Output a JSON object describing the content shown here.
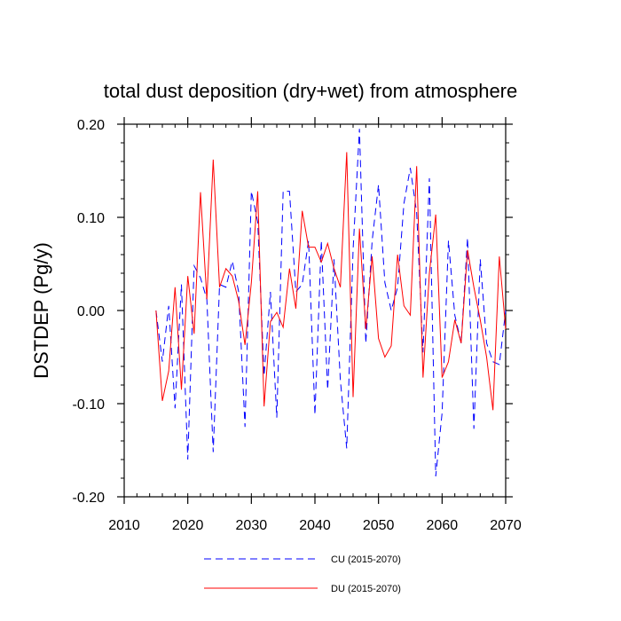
{
  "chart_data": {
    "type": "line",
    "title": "total dust deposition (dry+wet) from atmosphere",
    "xlabel": "",
    "ylabel": "DSTDEP  (Pg/y)",
    "xlim": [
      2010,
      2070
    ],
    "ylim": [
      -0.2,
      0.2
    ],
    "xticks": [
      2010,
      2020,
      2030,
      2040,
      2050,
      2060,
      2070
    ],
    "xtick_labels": [
      "2010",
      "2020",
      "2030",
      "2040",
      "2050",
      "2060",
      "2070"
    ],
    "yticks": [
      -0.2,
      -0.1,
      0.0,
      0.1,
      0.2
    ],
    "ytick_labels": [
      "-0.20",
      "-0.10",
      "0.00",
      "0.10",
      "0.20"
    ],
    "legend_position": "bottom-center",
    "series": [
      {
        "name": "CU (2015-2070)",
        "color": "#0000ff",
        "style": "dashed",
        "x": [
          2015,
          2016,
          2017,
          2018,
          2019,
          2020,
          2021,
          2022,
          2023,
          2024,
          2025,
          2026,
          2027,
          2028,
          2029,
          2030,
          2031,
          2032,
          2033,
          2034,
          2035,
          2036,
          2037,
          2038,
          2039,
          2040,
          2041,
          2042,
          2043,
          2044,
          2045,
          2046,
          2047,
          2048,
          2049,
          2050,
          2051,
          2052,
          2053,
          2054,
          2055,
          2056,
          2057,
          2058,
          2059,
          2060,
          2061,
          2062,
          2063,
          2064,
          2065,
          2066,
          2067,
          2068,
          2069,
          2070
        ],
        "values": [
          0.0,
          -0.055,
          0.005,
          -0.105,
          0.028,
          -0.16,
          0.048,
          0.035,
          0.012,
          -0.152,
          0.028,
          0.025,
          0.053,
          0.02,
          -0.125,
          0.128,
          0.095,
          -0.07,
          0.02,
          -0.115,
          0.128,
          0.128,
          0.02,
          0.028,
          0.075,
          -0.112,
          0.075,
          -0.085,
          0.055,
          -0.075,
          -0.148,
          0.065,
          0.195,
          -0.035,
          0.075,
          0.135,
          0.03,
          0.0,
          0.025,
          0.115,
          0.153,
          0.105,
          -0.045,
          0.142,
          -0.178,
          -0.11,
          0.075,
          -0.005,
          -0.035,
          0.078,
          -0.127,
          0.055,
          -0.035,
          -0.055,
          -0.058,
          0.0
        ]
      },
      {
        "name": "DU (2015-2070)",
        "color": "#ff0000",
        "style": "solid",
        "x": [
          2015,
          2016,
          2017,
          2018,
          2019,
          2020,
          2021,
          2022,
          2023,
          2024,
          2025,
          2026,
          2027,
          2028,
          2029,
          2030,
          2031,
          2032,
          2033,
          2034,
          2035,
          2036,
          2037,
          2038,
          2039,
          2040,
          2041,
          2042,
          2043,
          2044,
          2045,
          2046,
          2047,
          2048,
          2049,
          2050,
          2051,
          2052,
          2053,
          2054,
          2055,
          2056,
          2057,
          2058,
          2059,
          2060,
          2061,
          2062,
          2063,
          2064,
          2065,
          2066,
          2067,
          2068,
          2069,
          2070
        ],
        "values": [
          0.0,
          -0.097,
          -0.065,
          0.025,
          -0.085,
          0.037,
          -0.025,
          0.127,
          0.012,
          0.162,
          0.025,
          0.045,
          0.037,
          0.01,
          -0.037,
          0.03,
          0.128,
          -0.103,
          -0.012,
          -0.002,
          -0.018,
          0.045,
          0.002,
          0.107,
          0.068,
          0.068,
          0.052,
          0.072,
          0.045,
          0.025,
          0.17,
          -0.093,
          0.088,
          -0.02,
          0.058,
          -0.03,
          -0.05,
          -0.038,
          0.06,
          0.005,
          -0.005,
          0.155,
          -0.072,
          0.04,
          0.103,
          -0.072,
          -0.055,
          -0.01,
          -0.035,
          0.065,
          0.025,
          -0.01,
          -0.05,
          -0.107,
          0.058,
          -0.02
        ]
      }
    ]
  }
}
